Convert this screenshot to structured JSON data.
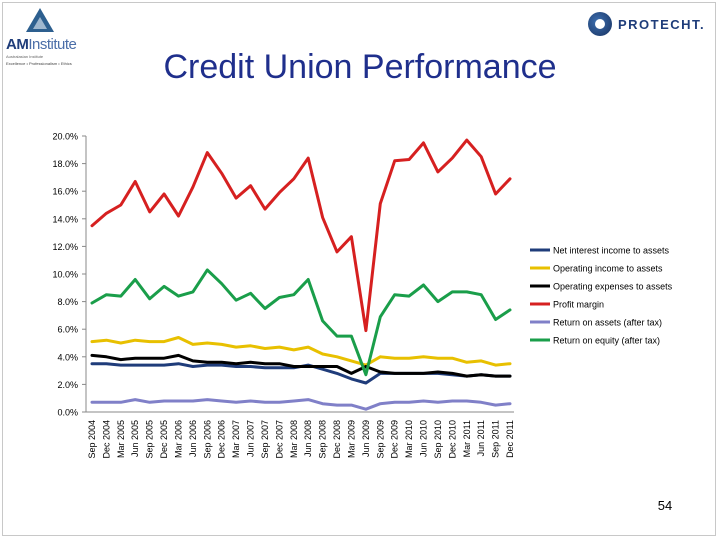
{
  "slide": {
    "title": "Credit Union Performance",
    "page_number": "54"
  },
  "logos": {
    "left_name_bold": "AM",
    "left_name_light": "Institute",
    "left_subtitle": "Australasian Institute",
    "left_tagline": "Excellence • Professionalism • Ethics",
    "right_name": "PROTECHT."
  },
  "chart_data": {
    "type": "line",
    "title": "",
    "xlabel": "",
    "ylabel": "",
    "ylim": [
      0,
      20
    ],
    "ytick_step": 2,
    "ytick_labels": [
      "0.0%",
      "2.0%",
      "4.0%",
      "6.0%",
      "8.0%",
      "10.0%",
      "12.0%",
      "14.0%",
      "16.0%",
      "18.0%",
      "20.0%"
    ],
    "grid": false,
    "legend_position": "right",
    "x_tick_labels": [
      "Sep 2004",
      "Dec 2004",
      "Mar 2005",
      "Jun 2005",
      "Sep 2005",
      "Dec 2005",
      "Mar 2006",
      "Jun 2006",
      "Sep 2006",
      "Dec 2006",
      "Mar 2007",
      "Jun 2007",
      "Sep 2007",
      "Dec 2007",
      "Mar 2008",
      "Jun 2008",
      "Sep 2008",
      "Dec 2008",
      "Mar 2009",
      "Jun 2009",
      "Sep 2009",
      "Dec 2009",
      "Mar 2010",
      "Jun 2010",
      "Sep 2010",
      "Dec 2010",
      "Mar 2011",
      "Jun 2011",
      "Sep 2011",
      "Dec 2011"
    ],
    "x": [
      "Sep 2004",
      "Dec 2004",
      "Mar 2005",
      "Jun 2005",
      "Sep 2005",
      "Dec 2005",
      "Mar 2006",
      "Jun 2006",
      "Sep 2006",
      "Dec 2006",
      "Mar 2007",
      "Jun 2007",
      "Sep 2007",
      "Dec 2007",
      "Mar 2008",
      "Jun 2008",
      "Sep 2008",
      "Dec 2008",
      "Mar 2009",
      "Jun 2009",
      "Sep 2009",
      "Dec 2009",
      "Mar 2010",
      "Jun 2010",
      "Sep 2010",
      "Dec 2010",
      "Mar 2011",
      "Jun 2011",
      "Sep 2011",
      "Dec 2011"
    ],
    "series": [
      {
        "name": "Net interest income to assets",
        "color": "#1f3c7a",
        "values": [
          3.5,
          3.5,
          3.4,
          3.4,
          3.4,
          3.4,
          3.5,
          3.3,
          3.4,
          3.4,
          3.3,
          3.3,
          3.2,
          3.2,
          3.2,
          3.4,
          3.1,
          2.8,
          2.4,
          2.1,
          2.8,
          2.8,
          2.8,
          2.8,
          2.8,
          2.7,
          2.6,
          2.7,
          2.6,
          2.6
        ]
      },
      {
        "name": "Operating income to assets",
        "color": "#e8c000",
        "values": [
          5.1,
          5.2,
          5.0,
          5.2,
          5.1,
          5.1,
          5.4,
          4.9,
          5.0,
          4.9,
          4.7,
          4.8,
          4.6,
          4.7,
          4.5,
          4.7,
          4.2,
          4.0,
          3.7,
          3.4,
          4.0,
          3.9,
          3.9,
          4.0,
          3.9,
          3.9,
          3.6,
          3.7,
          3.4,
          3.5
        ]
      },
      {
        "name": "Operating expenses to assets",
        "color": "#000000",
        "values": [
          4.1,
          4.0,
          3.8,
          3.9,
          3.9,
          3.9,
          4.1,
          3.7,
          3.6,
          3.6,
          3.5,
          3.6,
          3.5,
          3.5,
          3.3,
          3.3,
          3.3,
          3.3,
          2.8,
          3.3,
          2.9,
          2.8,
          2.8,
          2.8,
          2.9,
          2.8,
          2.6,
          2.7,
          2.6,
          2.6
        ]
      },
      {
        "name": "Profit margin",
        "color": "#d62020",
        "values": [
          13.5,
          14.4,
          15.0,
          16.7,
          14.5,
          15.8,
          14.2,
          16.3,
          18.8,
          17.3,
          15.5,
          16.4,
          14.7,
          15.9,
          16.9,
          18.4,
          14.1,
          11.6,
          12.7,
          5.9,
          15.1,
          18.2,
          18.3,
          19.5,
          17.4,
          18.4,
          19.7,
          18.5,
          15.8,
          16.9
        ]
      },
      {
        "name": "Return on assets (after tax)",
        "color": "#8080c8",
        "values": [
          0.7,
          0.7,
          0.7,
          0.9,
          0.7,
          0.8,
          0.8,
          0.8,
          0.9,
          0.8,
          0.7,
          0.8,
          0.7,
          0.7,
          0.8,
          0.9,
          0.6,
          0.5,
          0.5,
          0.2,
          0.6,
          0.7,
          0.7,
          0.8,
          0.7,
          0.8,
          0.8,
          0.7,
          0.5,
          0.6
        ]
      },
      {
        "name": "Return on equity (after tax)",
        "color": "#1a9e4a",
        "values": [
          7.9,
          8.5,
          8.4,
          9.6,
          8.2,
          9.1,
          8.4,
          8.7,
          10.3,
          9.3,
          8.1,
          8.6,
          7.5,
          8.3,
          8.5,
          9.6,
          6.6,
          5.5,
          5.5,
          2.7,
          6.9,
          8.5,
          8.4,
          9.2,
          8.0,
          8.7,
          8.7,
          8.5,
          6.7,
          7.4
        ]
      }
    ]
  }
}
